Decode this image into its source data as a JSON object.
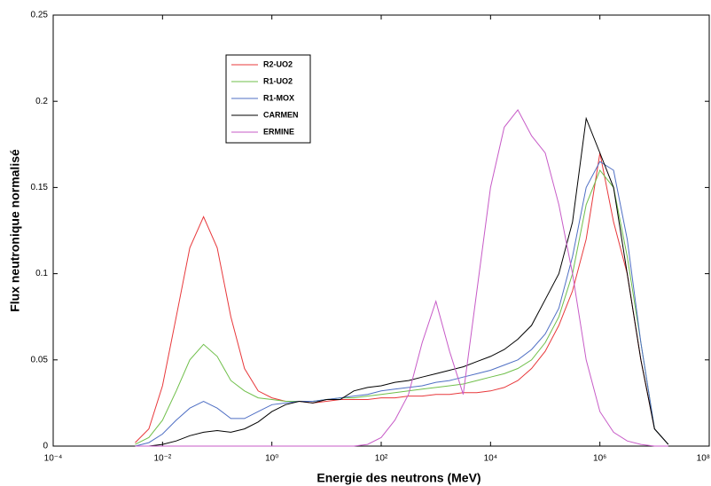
{
  "chart_data": {
    "type": "line",
    "xlabel": "Energie des neutrons (MeV)",
    "ylabel": "Flux neutronique normalisé",
    "log_x": true,
    "xlim": [
      0.0001,
      100000000
    ],
    "xticks": [
      {
        "value": 0.0001,
        "label": "10⁻⁴"
      },
      {
        "value": 0.01,
        "label": "10⁻²"
      },
      {
        "value": 1,
        "label": "10⁰"
      },
      {
        "value": 100,
        "label": "10²"
      },
      {
        "value": 10000,
        "label": "10⁴"
      },
      {
        "value": 1000000,
        "label": "10⁶"
      },
      {
        "value": 100000000,
        "label": "10⁸"
      }
    ],
    "ylim": [
      0,
      0.25
    ],
    "yticks": [
      0,
      0.05,
      0.1,
      0.15,
      0.2,
      0.25
    ],
    "legend": "upper-left",
    "x": [
      0.00316,
      0.00562,
      0.01,
      0.0178,
      0.0316,
      0.0562,
      0.1,
      0.178,
      0.316,
      0.562,
      1,
      1.78,
      3.16,
      5.62,
      10,
      17.8,
      31.6,
      56.2,
      100,
      178,
      316,
      562,
      1000,
      1780,
      3160,
      5620,
      10000,
      17800,
      31600,
      56200,
      100000,
      178000,
      316000,
      562000,
      1000000,
      1780000,
      3160000,
      5620000,
      10000000,
      17800000
    ],
    "series": [
      {
        "name": "R2-UO2",
        "color": "#e8383b",
        "values": [
          0.002,
          0.01,
          0.035,
          0.075,
          0.115,
          0.133,
          0.115,
          0.075,
          0.045,
          0.032,
          0.028,
          0.026,
          0.026,
          0.025,
          0.026,
          0.027,
          0.027,
          0.027,
          0.028,
          0.028,
          0.029,
          0.029,
          0.03,
          0.03,
          0.031,
          0.031,
          0.032,
          0.034,
          0.038,
          0.045,
          0.055,
          0.07,
          0.09,
          0.12,
          0.17,
          0.13,
          0.1,
          0.05,
          0.01,
          0.001
        ]
      },
      {
        "name": "R1-UO2",
        "color": "#6fbf4a",
        "values": [
          0.001,
          0.005,
          0.015,
          0.032,
          0.05,
          0.059,
          0.052,
          0.038,
          0.032,
          0.028,
          0.027,
          0.026,
          0.026,
          0.026,
          0.027,
          0.028,
          0.028,
          0.029,
          0.03,
          0.031,
          0.032,
          0.033,
          0.034,
          0.035,
          0.036,
          0.038,
          0.04,
          0.042,
          0.045,
          0.05,
          0.06,
          0.075,
          0.1,
          0.14,
          0.16,
          0.15,
          0.11,
          0.06,
          0.01,
          0.001
        ]
      },
      {
        "name": "R1-MOX",
        "color": "#4f6fc4",
        "values": [
          0,
          0.002,
          0.007,
          0.015,
          0.022,
          0.026,
          0.022,
          0.016,
          0.016,
          0.02,
          0.024,
          0.025,
          0.026,
          0.026,
          0.027,
          0.028,
          0.029,
          0.03,
          0.032,
          0.033,
          0.034,
          0.035,
          0.037,
          0.038,
          0.04,
          0.042,
          0.044,
          0.047,
          0.05,
          0.056,
          0.065,
          0.08,
          0.11,
          0.15,
          0.165,
          0.16,
          0.12,
          0.06,
          0.01,
          0.001
        ]
      },
      {
        "name": "CARMEN",
        "color": "#000000",
        "values": [
          0,
          0,
          0.001,
          0.003,
          0.006,
          0.008,
          0.009,
          0.008,
          0.01,
          0.014,
          0.02,
          0.024,
          0.026,
          0.025,
          0.027,
          0.027,
          0.032,
          0.034,
          0.035,
          0.037,
          0.038,
          0.04,
          0.042,
          0.044,
          0.046,
          0.049,
          0.052,
          0.056,
          0.062,
          0.07,
          0.085,
          0.1,
          0.13,
          0.19,
          0.17,
          0.15,
          0.1,
          0.05,
          0.01,
          0.001
        ]
      },
      {
        "name": "ERMINE",
        "color": "#c75bc7",
        "values": [
          0,
          0,
          0,
          0,
          0,
          0,
          0,
          0,
          0,
          0,
          0,
          0,
          0,
          0,
          0,
          0,
          0,
          0.001,
          0.005,
          0.015,
          0.03,
          0.06,
          0.084,
          0.055,
          0.03,
          0.09,
          0.15,
          0.185,
          0.195,
          0.18,
          0.17,
          0.14,
          0.1,
          0.05,
          0.02,
          0.008,
          0.003,
          0.001,
          0,
          0
        ]
      }
    ]
  }
}
